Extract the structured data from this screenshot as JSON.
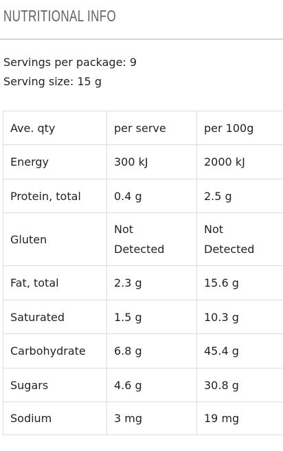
{
  "header": {
    "title": "NUTRITIONAL INFO"
  },
  "servings": [
    "Servings per package: 9",
    "Serving size: 15 g"
  ],
  "table": {
    "rows": [
      [
        "Ave. qty",
        "per serve",
        "per 100g"
      ],
      [
        "Energy",
        "300 kJ",
        "2000 kJ"
      ],
      [
        "Protein, total",
        "0.4 g",
        "2.5 g"
      ],
      [
        "Gluten",
        "Not Detected",
        "Not Detected"
      ],
      [
        "Fat, total",
        "2.3 g",
        "15.6 g"
      ],
      [
        "Saturated",
        "1.5 g",
        "10.3 g"
      ],
      [
        "Carbohydrate",
        "6.8 g",
        "45.4 g"
      ],
      [
        "Sugars",
        "4.6 g",
        "30.8 g"
      ],
      [
        "Sodium",
        "3 mg",
        "19 mg"
      ]
    ]
  }
}
